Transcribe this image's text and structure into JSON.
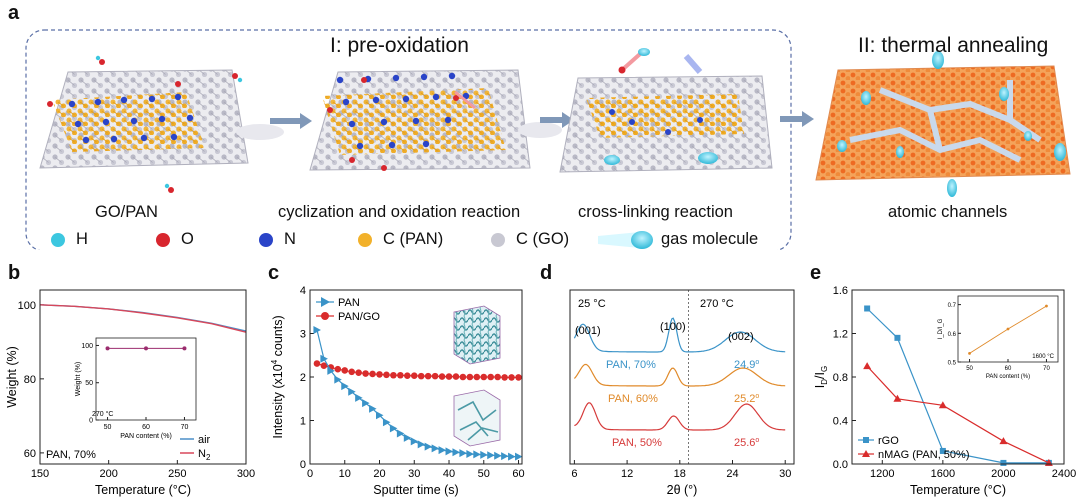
{
  "figure": {
    "panel_a": {
      "label": "a",
      "stage1_title": "I: pre-oxidation",
      "stage2_title": "II:  thermal annealing",
      "captions": [
        "GO/PAN",
        "cyclization and oxidation reaction",
        "cross-linking reaction",
        "atomic channels"
      ],
      "legend": [
        {
          "symbol": "H",
          "color": "#3cc7e0"
        },
        {
          "symbol": "O",
          "color": "#d8262e"
        },
        {
          "symbol": "N",
          "color": "#2a44c8"
        },
        {
          "symbol": "C (PAN)",
          "color": "#f2b12a"
        },
        {
          "symbol": "C (GO)",
          "color": "#c8c8d2"
        },
        {
          "symbol": "gas molecule",
          "color": "#3cc7e0"
        }
      ]
    },
    "panels": [
      "b",
      "c",
      "d",
      "e"
    ]
  },
  "chart_data": [
    {
      "panel": "b",
      "type": "line",
      "xlabel": "Temperature (°C)",
      "ylabel": "Weight (%)",
      "xlim": [
        150,
        300
      ],
      "ylim": [
        57,
        104
      ],
      "xticks": [
        "150",
        "200",
        "250",
        "300"
      ],
      "yticks": [
        "60",
        "80",
        "100"
      ],
      "annotation": "PAN, 70%",
      "series": [
        {
          "name": "air",
          "color": "#4a8fc9",
          "x": [
            150,
            175,
            200,
            225,
            250,
            275,
            300
          ],
          "values": [
            100,
            99.6,
            98.9,
            97.9,
            96.6,
            95.0,
            92.9
          ]
        },
        {
          "name": "N2",
          "name_main": "N",
          "name_sub": "2",
          "color": "#d8475a",
          "x": [
            150,
            175,
            200,
            225,
            250,
            275,
            300
          ],
          "values": [
            100,
            99.6,
            98.9,
            97.8,
            96.5,
            94.9,
            92.6
          ]
        }
      ],
      "inset": {
        "xlabel": "PAN content (%)",
        "ylabel": "Weight (%)",
        "xticks": [
          "50",
          "60",
          "70"
        ],
        "yticks": [
          "0",
          "50",
          "100"
        ],
        "x": [
          50,
          60,
          70
        ],
        "values": [
          96,
          96,
          96
        ],
        "annotation": "270 °C",
        "color": "#9b2c6e"
      }
    },
    {
      "panel": "c",
      "type": "line",
      "xlabel": "Sputter time (s)",
      "ylabel": "Intensity (x10",
      "ylabel_sup": "4",
      "ylabel_end": " counts)",
      "xlim": [
        0,
        61
      ],
      "ylim": [
        0,
        4
      ],
      "xticks": [
        "0",
        "10",
        "20",
        "30",
        "40",
        "50",
        "60"
      ],
      "yticks": [
        "0",
        "1",
        "2",
        "3",
        "4"
      ],
      "series": [
        {
          "name": "PAN",
          "color": "#3a93c8",
          "marker": "triangle",
          "x": [
            2,
            4,
            6,
            8,
            10,
            12,
            14,
            16,
            18,
            20,
            22,
            24,
            26,
            28,
            30,
            32,
            34,
            36,
            38,
            40,
            42,
            44,
            46,
            48,
            50,
            52,
            54,
            56,
            58,
            60
          ],
          "values": [
            3.08,
            2.42,
            2.14,
            1.94,
            1.79,
            1.66,
            1.52,
            1.4,
            1.27,
            1.12,
            0.96,
            0.82,
            0.7,
            0.6,
            0.52,
            0.45,
            0.4,
            0.36,
            0.32,
            0.29,
            0.27,
            0.25,
            0.23,
            0.22,
            0.21,
            0.2,
            0.19,
            0.18,
            0.17,
            0.17
          ]
        },
        {
          "name": "PAN/GO",
          "color": "#d92c2c",
          "marker": "circle",
          "x": [
            2,
            4,
            6,
            8,
            10,
            12,
            14,
            16,
            18,
            20,
            22,
            24,
            26,
            28,
            30,
            32,
            34,
            36,
            38,
            40,
            42,
            44,
            46,
            48,
            50,
            52,
            54,
            56,
            58,
            60
          ],
          "values": [
            2.31,
            2.26,
            2.22,
            2.18,
            2.15,
            2.12,
            2.1,
            2.08,
            2.07,
            2.06,
            2.05,
            2.04,
            2.04,
            2.03,
            2.03,
            2.02,
            2.02,
            2.02,
            2.01,
            2.01,
            2.01,
            2.0,
            2.0,
            2.0,
            2.0,
            2.0,
            2.0,
            1.99,
            1.99,
            1.99
          ]
        }
      ]
    },
    {
      "panel": "d",
      "type": "line",
      "xlabel": "2θ (°)",
      "xlim": [
        5.5,
        31
      ],
      "xticks": [
        "6",
        "12",
        "18",
        "24",
        "30"
      ],
      "annotations": {
        "left_temp": "25 °C",
        "right_temp": "270 °C",
        "p001": "(001)",
        "p100": "(100)",
        "p002": "(002)"
      },
      "series": [
        {
          "name": "PAN, 70%",
          "color": "#3a93c8",
          "peak": "24.9",
          "offset": 2
        },
        {
          "name": "PAN, 60%",
          "color": "#e08a2a",
          "peak": "25.2",
          "offset": 1
        },
        {
          "name": "PAN, 50%",
          "color": "#d63a3a",
          "peak": "25.6",
          "offset": 0
        }
      ]
    },
    {
      "panel": "e",
      "type": "line",
      "xlabel": "Temperature (°C)",
      "ylabel_main": "I",
      "ylabel_sub1": "D",
      "ylabel_mid": "/I",
      "ylabel_sub2": "G",
      "xlim": [
        1000,
        2400
      ],
      "ylim": [
        0,
        1.6
      ],
      "xticks": [
        "1200",
        "1600",
        "2000",
        "2400"
      ],
      "yticks": [
        "0.0",
        "0.4",
        "0.8",
        "1.2",
        "1.6"
      ],
      "series": [
        {
          "name": "rGO",
          "color": "#3a93c8",
          "marker": "square",
          "x": [
            1100,
            1300,
            1600,
            2000,
            2300
          ],
          "values": [
            1.43,
            1.16,
            0.12,
            0.01,
            0.01
          ]
        },
        {
          "name": "nMAG (PAN, 50%)",
          "color": "#d92c2c",
          "marker": "triangle",
          "x": [
            1100,
            1300,
            1600,
            2000,
            2300
          ],
          "values": [
            0.9,
            0.6,
            0.54,
            0.21,
            0.01
          ]
        }
      ],
      "inset": {
        "xlabel": "PAN content (%)",
        "ylabel": "I_D/I_G",
        "xticks": [
          "50",
          "60",
          "70"
        ],
        "yticks": [
          "0.5",
          "0.6",
          "0.7"
        ],
        "x": [
          50,
          60,
          70
        ],
        "values": [
          0.53,
          0.615,
          0.695
        ],
        "annotation": "1600 °C",
        "color": "#e08a2a"
      }
    }
  ]
}
